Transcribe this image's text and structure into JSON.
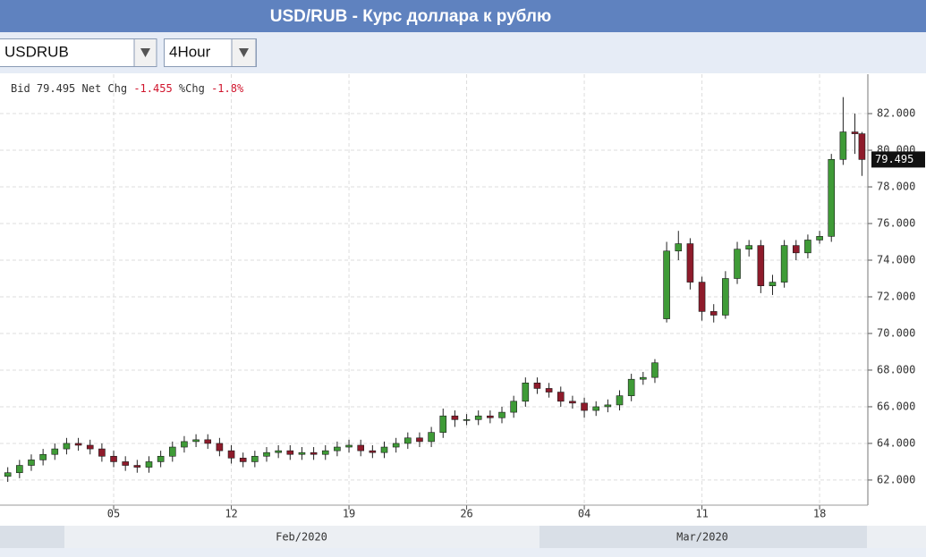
{
  "header": {
    "title": "USD/RUB - Курс доллара к рублю"
  },
  "toolbar": {
    "symbol": "USDRUB",
    "interval": "4Hour"
  },
  "quote": {
    "bid_label": "Bid",
    "bid": "79.495",
    "net_chg_label": "Net Chg",
    "net_chg": "-1.455",
    "pct_chg_label": "%Chg",
    "pct_chg": "-1.8%"
  },
  "chart_data": {
    "type": "candlestick",
    "x": [
      -4.5,
      -4,
      -3.5,
      -3,
      -2.5,
      -2,
      -1.5,
      -1,
      -0.5,
      0,
      0.5,
      1,
      1.5,
      2,
      2.5,
      3,
      3.5,
      4,
      4.5,
      5,
      5.5,
      6,
      6.5,
      7,
      7.5,
      8,
      8.5,
      9,
      9.5,
      10,
      10.5,
      11,
      11.5,
      12,
      12.5,
      13,
      13.5,
      14,
      14.5,
      15,
      15.5,
      16,
      16.5,
      17,
      17.5,
      18,
      18.5,
      19,
      19.5,
      20,
      20.5,
      21,
      21.5,
      22,
      22.5,
      23,
      23.5,
      24,
      24.5,
      25,
      25.5,
      26,
      26.5,
      27,
      27.5,
      28,
      28.5,
      29,
      29.5,
      30,
      30.5,
      31,
      31.5,
      31.8
    ],
    "open": [
      62.2,
      62.4,
      62.8,
      63.1,
      63.4,
      63.7,
      64.0,
      63.9,
      63.7,
      63.3,
      63.0,
      62.8,
      62.7,
      63.0,
      63.3,
      63.8,
      64.1,
      64.2,
      64.0,
      63.6,
      63.2,
      63.0,
      63.3,
      63.5,
      63.6,
      63.4,
      63.5,
      63.4,
      63.6,
      63.8,
      63.9,
      63.6,
      63.5,
      63.8,
      64.0,
      64.3,
      64.1,
      64.6,
      65.5,
      65.3,
      65.3,
      65.5,
      65.4,
      65.7,
      66.3,
      67.3,
      67.0,
      66.8,
      66.3,
      66.2,
      65.8,
      66.0,
      66.1,
      66.6,
      67.5,
      67.6,
      70.8,
      74.5,
      74.9,
      72.8,
      71.2,
      71.0,
      73.0,
      74.6,
      74.8,
      72.6,
      72.8,
      74.8,
      74.4,
      75.1,
      75.3,
      79.5,
      81.0,
      80.9
    ],
    "high": [
      62.7,
      63.1,
      63.4,
      63.7,
      64.0,
      64.3,
      64.3,
      64.2,
      64.0,
      63.6,
      63.3,
      63.1,
      63.3,
      63.6,
      64.1,
      64.4,
      64.5,
      64.5,
      64.3,
      63.9,
      63.5,
      63.6,
      63.8,
      63.9,
      63.9,
      63.8,
      63.8,
      63.9,
      64.1,
      64.2,
      64.2,
      63.9,
      64.1,
      64.3,
      64.6,
      64.6,
      64.9,
      65.9,
      65.8,
      65.6,
      65.8,
      65.8,
      66.0,
      66.6,
      67.6,
      67.6,
      67.3,
      67.1,
      66.6,
      66.5,
      66.3,
      66.4,
      66.9,
      67.8,
      67.9,
      68.6,
      75.0,
      75.6,
      75.2,
      73.1,
      71.6,
      73.4,
      75.0,
      75.1,
      75.1,
      73.2,
      75.1,
      75.1,
      75.4,
      75.6,
      79.8,
      82.9,
      82.0,
      81.0
    ],
    "low": [
      61.9,
      62.1,
      62.5,
      62.8,
      63.1,
      63.4,
      63.6,
      63.4,
      63.0,
      62.7,
      62.5,
      62.4,
      62.4,
      62.7,
      63.0,
      63.5,
      63.8,
      63.7,
      63.3,
      62.9,
      62.7,
      62.7,
      63.0,
      63.2,
      63.1,
      63.1,
      63.1,
      63.1,
      63.3,
      63.5,
      63.3,
      63.2,
      63.2,
      63.5,
      63.7,
      63.8,
      63.8,
      64.3,
      64.9,
      65.0,
      65.0,
      65.1,
      65.1,
      65.4,
      66.0,
      66.7,
      66.5,
      66.0,
      65.9,
      65.4,
      65.5,
      65.7,
      65.8,
      66.3,
      67.2,
      67.3,
      70.6,
      74.0,
      72.4,
      70.7,
      70.6,
      70.8,
      72.7,
      74.2,
      72.2,
      72.1,
      72.5,
      74.0,
      74.1,
      74.9,
      75.0,
      79.2,
      79.8,
      78.6
    ],
    "close": [
      62.4,
      62.8,
      63.1,
      63.4,
      63.7,
      64.0,
      63.9,
      63.7,
      63.3,
      63.0,
      62.8,
      62.7,
      63.0,
      63.3,
      63.8,
      64.1,
      64.2,
      64.0,
      63.6,
      63.2,
      63.0,
      63.3,
      63.5,
      63.6,
      63.4,
      63.5,
      63.4,
      63.6,
      63.8,
      63.9,
      63.6,
      63.5,
      63.8,
      64.0,
      64.3,
      64.1,
      64.6,
      65.5,
      65.3,
      65.3,
      65.5,
      65.4,
      65.7,
      66.3,
      67.3,
      67.0,
      66.8,
      66.3,
      66.2,
      65.8,
      66.0,
      66.1,
      66.6,
      67.5,
      67.6,
      68.4,
      74.5,
      74.9,
      72.8,
      71.2,
      71.0,
      73.0,
      74.6,
      74.8,
      72.6,
      72.8,
      74.8,
      74.4,
      75.1,
      75.3,
      79.5,
      81.0,
      80.9,
      79.495
    ],
    "up_color": "#3f9b37",
    "down_color": "#8e1b2b",
    "xlim": [
      -4.83,
      32.05
    ],
    "xticks": [
      {
        "value": 0,
        "label": "05"
      },
      {
        "value": 5,
        "label": "12"
      },
      {
        "value": 10,
        "label": "19"
      },
      {
        "value": 15,
        "label": "26"
      },
      {
        "value": 20,
        "label": "04"
      },
      {
        "value": 25,
        "label": "11"
      },
      {
        "value": 30,
        "label": "18"
      }
    ],
    "periods": [
      "Feb/2020",
      "Mar/2020"
    ],
    "ylim": [
      60.63,
      84.15
    ],
    "yticks": [
      {
        "value": 62,
        "label": "62.000"
      },
      {
        "value": 64,
        "label": "64.000"
      },
      {
        "value": 66,
        "label": "66.000"
      },
      {
        "value": 68,
        "label": "68.000"
      },
      {
        "value": 70,
        "label": "70.000"
      },
      {
        "value": 72,
        "label": "72.000"
      },
      {
        "value": 74,
        "label": "74.000"
      },
      {
        "value": 76,
        "label": "76.000"
      },
      {
        "value": 78,
        "label": "78.000"
      },
      {
        "value": 80,
        "label": "80.000"
      },
      {
        "value": 82,
        "label": "82.000"
      }
    ],
    "grid": true
  }
}
